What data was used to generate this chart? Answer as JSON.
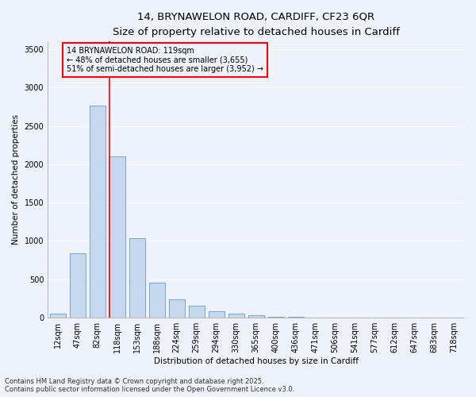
{
  "title_line1": "14, BRYNAWELON ROAD, CARDIFF, CF23 6QR",
  "title_line2": "Size of property relative to detached houses in Cardiff",
  "xlabel": "Distribution of detached houses by size in Cardiff",
  "ylabel": "Number of detached properties",
  "categories": [
    "12sqm",
    "47sqm",
    "82sqm",
    "118sqm",
    "153sqm",
    "188sqm",
    "224sqm",
    "259sqm",
    "294sqm",
    "330sqm",
    "365sqm",
    "400sqm",
    "436sqm",
    "471sqm",
    "506sqm",
    "541sqm",
    "577sqm",
    "612sqm",
    "647sqm",
    "683sqm",
    "718sqm"
  ],
  "values": [
    55,
    840,
    2760,
    2105,
    1035,
    455,
    235,
    155,
    85,
    50,
    30,
    15,
    8,
    4,
    2,
    1,
    1,
    0,
    0,
    0,
    0
  ],
  "bar_color": "#c5d8ee",
  "bar_edge_color": "#6699cc",
  "vline_color": "red",
  "vline_index": 3,
  "annotation_text": "14 BRYNAWELON ROAD: 119sqm\n← 48% of detached houses are smaller (3,655)\n51% of semi-detached houses are larger (3,952) →",
  "annotation_box_color": "red",
  "ylim": [
    0,
    3600
  ],
  "yticks": [
    0,
    500,
    1000,
    1500,
    2000,
    2500,
    3000,
    3500
  ],
  "background_color": "#eef2fa",
  "grid_color": "#ffffff",
  "footer_line1": "Contains HM Land Registry data © Crown copyright and database right 2025.",
  "footer_line2": "Contains public sector information licensed under the Open Government Licence v3.0.",
  "title_fontsize": 9.5,
  "subtitle_fontsize": 8.5,
  "axis_label_fontsize": 7.5,
  "tick_fontsize": 7,
  "annotation_fontsize": 7,
  "footer_fontsize": 6
}
